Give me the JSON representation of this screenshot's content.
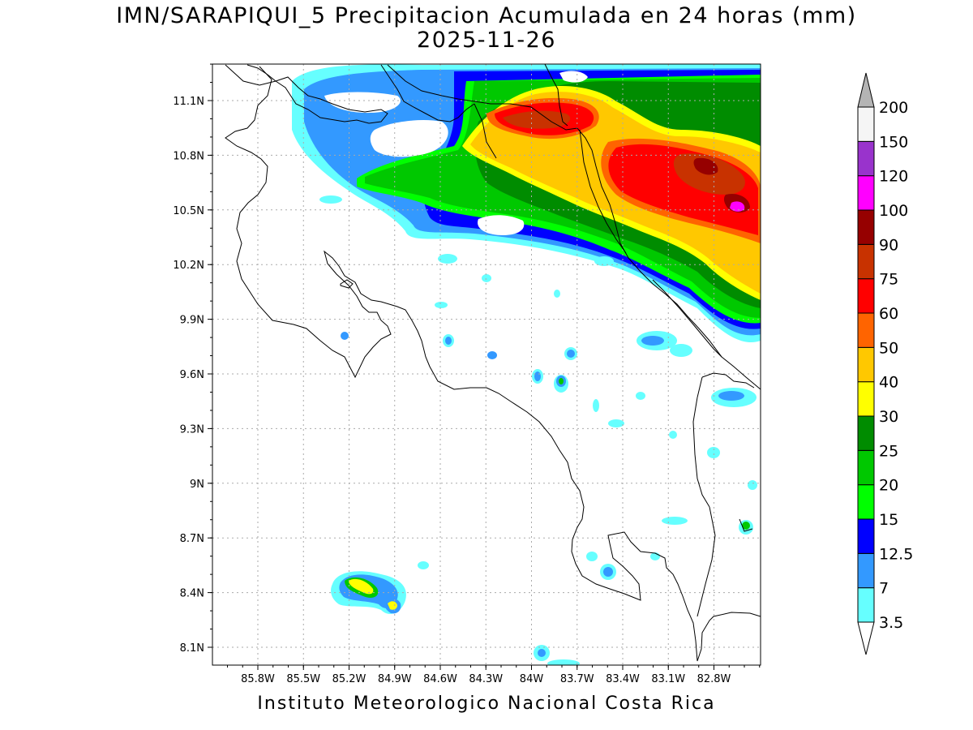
{
  "title_line1": "IMN/SARAPIQUI_5 Precipitacion Acumulada en 24 horas (mm)",
  "title_line2": "2025-11-26",
  "credit": "Instituto Meteorologico Nacional Costa Rica",
  "lon_ticks": [
    "85.8W",
    "85.5W",
    "85.2W",
    "84.9W",
    "84.6W",
    "84.3W",
    "84W",
    "83.7W",
    "83.4W",
    "83.1W",
    "82.8W"
  ],
  "lat_ticks": [
    "11.1N",
    "10.8N",
    "10.5N",
    "10.2N",
    "9.9N",
    "9.6N",
    "9.3N",
    "9N",
    "8.7N",
    "8.4N",
    "8.1N"
  ],
  "colorbar": {
    "labels": [
      "3.5",
      "7",
      "12.5",
      "15",
      "20",
      "25",
      "30",
      "40",
      "50",
      "60",
      "75",
      "90",
      "100",
      "120",
      "150",
      "200"
    ],
    "colors": [
      "#66ffff",
      "#3399ff",
      "#0000ff",
      "#00ff00",
      "#00c800",
      "#008c00",
      "#ffff00",
      "#ffc800",
      "#ff6400",
      "#ff0000",
      "#c83200",
      "#960000",
      "#ff00ff",
      "#9933cc",
      "#f5f5f5",
      "#b4b4b4"
    ]
  }
}
